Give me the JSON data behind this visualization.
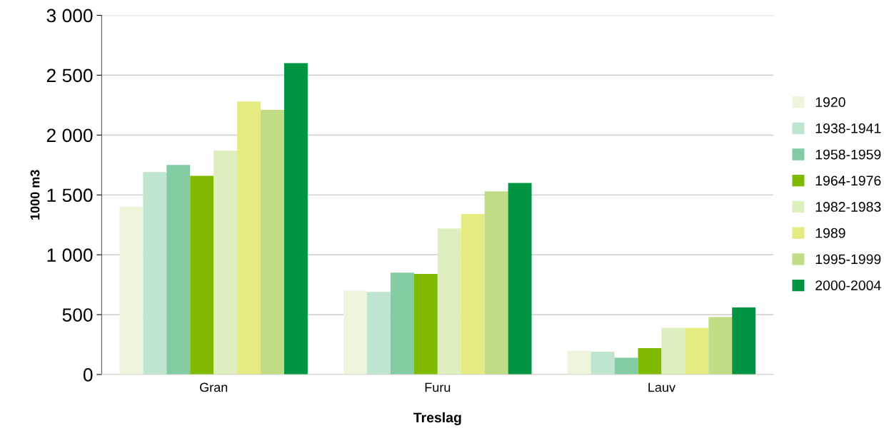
{
  "chart_data": {
    "type": "bar",
    "xlabel": "Treslag",
    "ylabel": "1000 m3",
    "categories": [
      "Gran",
      "Furu",
      "Lauv"
    ],
    "series": [
      {
        "name": "1920",
        "color": "#edf5dd",
        "values": [
          1400,
          700,
          200
        ]
      },
      {
        "name": "1938-1941",
        "color": "#bfe4cf",
        "values": [
          1690,
          690,
          190
        ]
      },
      {
        "name": "1958-1959",
        "color": "#82cba3",
        "values": [
          1750,
          850,
          140
        ]
      },
      {
        "name": "1964-1976",
        "color": "#7fba00",
        "values": [
          1660,
          840,
          220
        ]
      },
      {
        "name": "1982-1983",
        "color": "#dfeebf",
        "values": [
          1870,
          1220,
          390
        ]
      },
      {
        "name": "1989",
        "color": "#e4eb80",
        "values": [
          2280,
          1340,
          390
        ]
      },
      {
        "name": "1995-1999",
        "color": "#c0dc84",
        "values": [
          2210,
          1530,
          480
        ]
      },
      {
        "name": "2000-2004",
        "color": "#009443",
        "values": [
          2600,
          1600,
          560
        ]
      }
    ],
    "ylim": [
      0,
      3000
    ],
    "yticks": [
      {
        "value": 0,
        "label": "0"
      },
      {
        "value": 500,
        "label": "500"
      },
      {
        "value": 1000,
        "label": "1 000"
      },
      {
        "value": 1500,
        "label": "1 500"
      },
      {
        "value": 2000,
        "label": "2 000"
      },
      {
        "value": 2500,
        "label": "2 500"
      },
      {
        "value": 3000,
        "label": "3 000"
      }
    ],
    "grid": "y",
    "legend": "right"
  }
}
